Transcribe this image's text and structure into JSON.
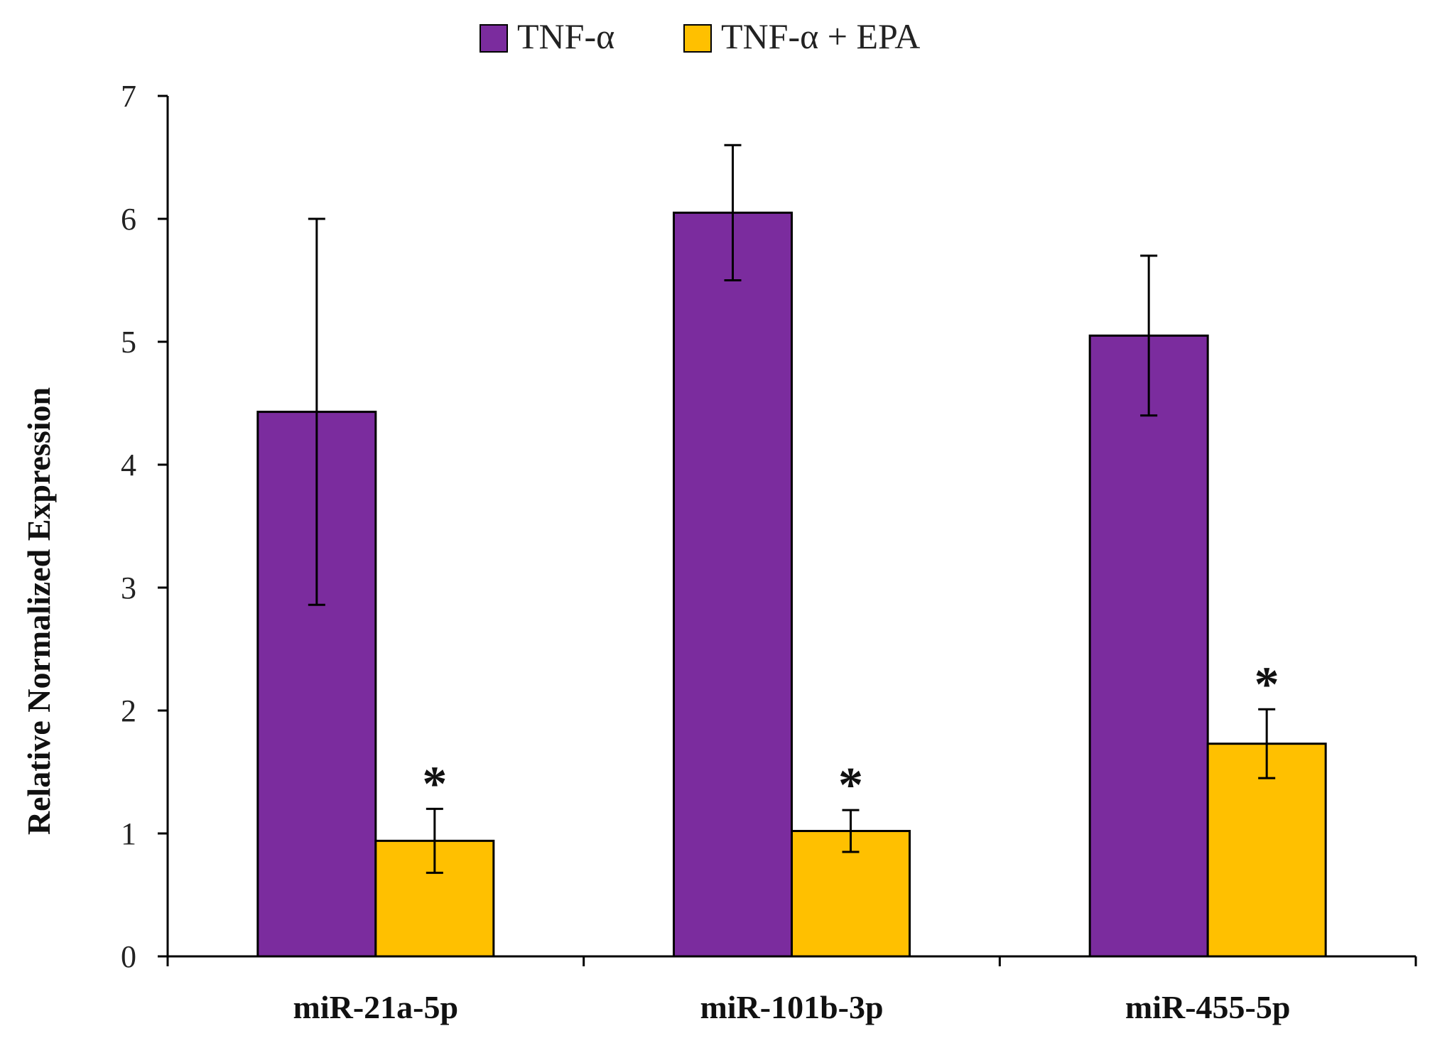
{
  "chart_data": {
    "type": "bar",
    "title": "",
    "xlabel": "",
    "ylabel": "Relative  Normalized Expression",
    "ylim": [
      0,
      7
    ],
    "yticks": [
      "0",
      "1",
      "2",
      "3",
      "4",
      "5",
      "6",
      "7"
    ],
    "categories": [
      "miR-21a-5p",
      "miR-101b-3p",
      "miR-455-5p"
    ],
    "series": [
      {
        "name": "TNF-α",
        "color": "#7b2c9e",
        "values": [
          4.43,
          6.05,
          5.05
        ],
        "error": [
          1.57,
          0.55,
          0.65
        ]
      },
      {
        "name": "TNF-α + EPA",
        "color": "#ffc000",
        "values": [
          0.94,
          1.02,
          1.73
        ],
        "error": [
          0.26,
          0.17,
          0.28
        ]
      }
    ],
    "significance": [
      "*",
      "*",
      "*"
    ],
    "legend_position": "top-center",
    "grid": false
  }
}
